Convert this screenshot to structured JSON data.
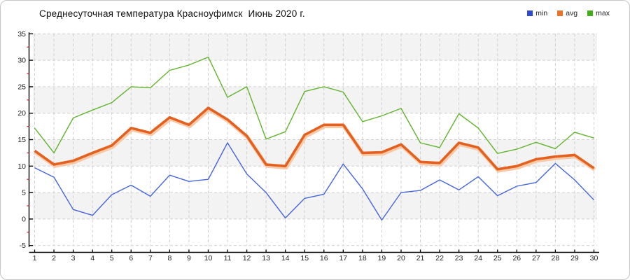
{
  "title": "Среднесуточная температура Красноуфимск  Июнь 2020 г.",
  "legend": [
    {
      "id": "min",
      "label": "min",
      "color": "#2f49d1"
    },
    {
      "id": "avg",
      "label": "avg",
      "color": "#e8732e"
    },
    {
      "id": "max",
      "label": "max",
      "color": "#3fae18"
    }
  ],
  "y_axis": {
    "min": -5,
    "max": 35,
    "step": 5,
    "minor_step": 2.5,
    "tick_labels": [
      "35",
      "30",
      "25",
      "20",
      "15",
      "10",
      "5",
      "0",
      "-5"
    ]
  },
  "x_axis": {
    "tick_labels": [
      "1",
      "2",
      "3",
      "4",
      "5",
      "6",
      "7",
      "8",
      "9",
      "10",
      "11",
      "12",
      "13",
      "14",
      "15",
      "16",
      "17",
      "18",
      "19",
      "20",
      "21",
      "22",
      "23",
      "24",
      "25",
      "26",
      "27",
      "28",
      "29",
      "30"
    ]
  },
  "chart_data": {
    "type": "line",
    "title": "Среднесуточная температура Красноуфимск  Июнь 2020 г.",
    "xlabel": "",
    "ylabel": "",
    "ylim": [
      -5,
      35
    ],
    "grid": true,
    "legend_position": "top-right",
    "x": [
      1,
      2,
      3,
      4,
      5,
      6,
      7,
      8,
      9,
      10,
      11,
      12,
      13,
      14,
      15,
      16,
      17,
      18,
      19,
      20,
      21,
      22,
      23,
      24,
      25,
      26,
      27,
      28,
      29,
      30
    ],
    "series": [
      {
        "name": "min",
        "color": "#4565dc",
        "width": 1.4,
        "values": [
          9.7,
          7.9,
          1.8,
          0.7,
          4.6,
          6.4,
          4.3,
          8.3,
          7.1,
          7.5,
          14.4,
          8.5,
          5.0,
          0.2,
          3.9,
          4.7,
          10.4,
          5.7,
          -0.2,
          5.0,
          5.4,
          7.4,
          5.5,
          8.0,
          4.4,
          6.2,
          6.9,
          10.5,
          7.4,
          3.6
        ]
      },
      {
        "name": "avg",
        "color": "#e4601e",
        "width": 3.6,
        "glow": "#f9c9a8",
        "values": [
          12.9,
          10.3,
          11.0,
          12.5,
          13.9,
          17.2,
          16.3,
          19.2,
          17.8,
          21.0,
          18.8,
          15.7,
          10.3,
          10.0,
          15.9,
          17.8,
          17.8,
          12.5,
          12.6,
          14.1,
          10.8,
          10.6,
          14.4,
          13.5,
          9.4,
          10.0,
          11.3,
          11.8,
          12.1,
          9.6
        ]
      },
      {
        "name": "max",
        "color": "#62b42e",
        "width": 1.4,
        "values": [
          17.2,
          12.5,
          19.1,
          20.6,
          22.0,
          25.0,
          24.8,
          28.1,
          29.1,
          30.6,
          23.0,
          25.0,
          15.1,
          16.5,
          24.1,
          25.0,
          24.0,
          18.4,
          19.5,
          20.9,
          14.4,
          13.5,
          19.9,
          17.2,
          12.4,
          13.2,
          14.5,
          13.3,
          16.4,
          15.3
        ]
      }
    ]
  },
  "style": {
    "band_color": "#f3f3f3",
    "grid_color": "#cfcfcf",
    "axis_color": "#000000",
    "minor_tick_color": "#cc2222",
    "label_color": "#222222"
  }
}
